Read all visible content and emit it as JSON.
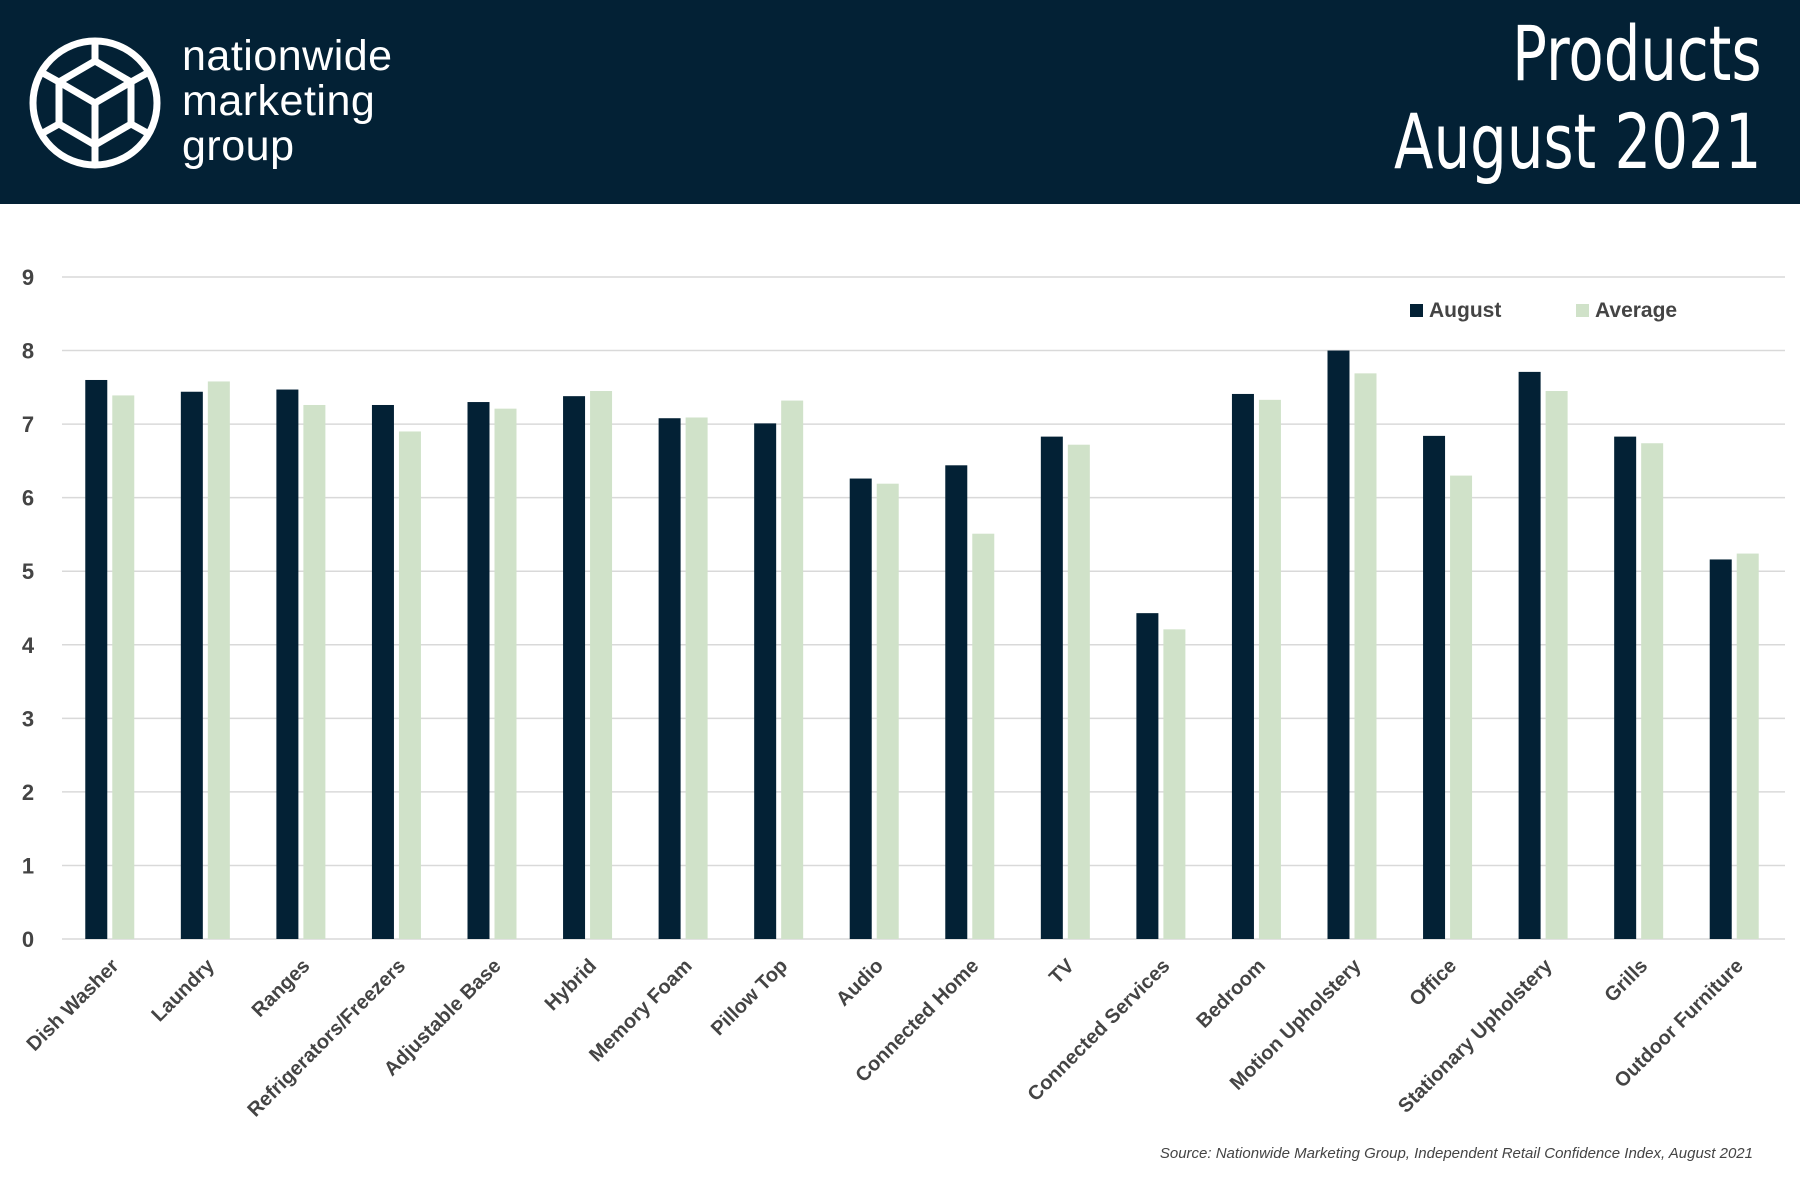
{
  "header": {
    "brand_lines": [
      "nationwide",
      "marketing",
      "group"
    ],
    "title_line1": "Products",
    "title_line2": "August 2021"
  },
  "colors": {
    "header_bg": "#032135",
    "august": "#032135",
    "average": "#d0e2c9",
    "grid": "#d9d9d9"
  },
  "chart_data": {
    "type": "bar",
    "categories": [
      "Dish Washer",
      "Laundry",
      "Ranges",
      "Refrigerators/Freezers",
      "Adjustable Base",
      "Hybrid",
      "Memory Foam",
      "Pillow Top",
      "Audio",
      "Connected Home",
      "TV",
      "Connected Services",
      "Bedroom",
      "Motion Upholstery",
      "Office",
      "Stationary Upholstery",
      "Grills",
      "Outdoor Furniture"
    ],
    "series": [
      {
        "name": "August",
        "values": [
          7.6,
          7.44,
          7.47,
          7.26,
          7.3,
          7.38,
          7.08,
          7.01,
          6.26,
          6.44,
          6.83,
          4.43,
          7.41,
          8.0,
          6.84,
          7.71,
          6.83,
          5.16
        ]
      },
      {
        "name": "Average",
        "values": [
          7.39,
          7.58,
          7.26,
          6.9,
          7.21,
          7.45,
          7.09,
          7.32,
          6.19,
          5.51,
          6.72,
          4.21,
          7.33,
          7.69,
          6.3,
          7.45,
          6.74,
          5.24
        ]
      }
    ],
    "ylim": [
      0,
      9
    ],
    "yticks": [
      0,
      1,
      2,
      3,
      4,
      5,
      6,
      7,
      8,
      9
    ],
    "grid": true,
    "legend_position": "top-right",
    "xlabel": "",
    "ylabel": ""
  },
  "source": "Source: Nationwide Marketing Group, Independent Retail Confidence Index, August 2021"
}
